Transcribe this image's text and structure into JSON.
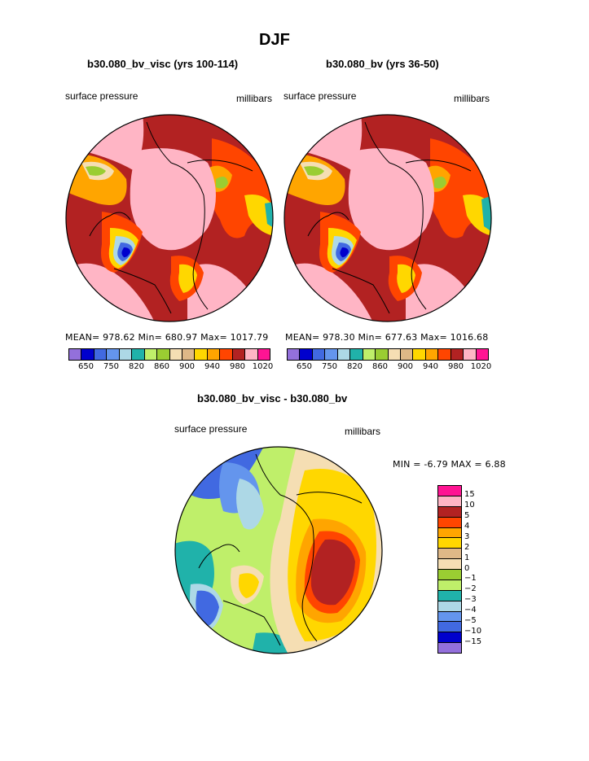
{
  "title": "DJF",
  "colors": {
    "pink_light": "#FFB5C5",
    "brown_red": "#B22222",
    "red": "#EE2C2C",
    "orange_red": "#FF4500",
    "orange": "#FFA500",
    "gold": "#FFD700",
    "tan": "#DEB887",
    "wheat": "#F5DEB3",
    "olive": "#9ACD32",
    "lime": "#BFEF6A",
    "teal": "#20B2AA",
    "light_blue": "#ADD8E6",
    "blue": "#4169E1",
    "dark_blue": "#0000CD",
    "purple": "#9370DB",
    "magenta": "#FF1493",
    "land_outline": "#000000"
  },
  "chart_data": [
    {
      "type": "heatmap",
      "projection": "north-polar-stereographic",
      "title": "b30.080_bv_visc (yrs 100-114)",
      "left_label": "surface pressure",
      "right_label": "millibars",
      "stats": "MEAN= 978.62   Min= 680.97   Max= 1017.79",
      "mean": 978.62,
      "min": 680.97,
      "max": 1017.79,
      "colorbar": {
        "colors": [
          "#9370DB",
          "#0000CD",
          "#4169E1",
          "#6495ED",
          "#ADD8E6",
          "#20B2AA",
          "#BFEF6A",
          "#9ACD32",
          "#F5DEB3",
          "#DEB887",
          "#FFD700",
          "#FFA500",
          "#FF4500",
          "#B22222",
          "#FFB5C5",
          "#FF1493"
        ],
        "tick_labels": [
          "650",
          "750",
          "820",
          "860",
          "900",
          "940",
          "980",
          "1020"
        ]
      }
    },
    {
      "type": "heatmap",
      "projection": "north-polar-stereographic",
      "title": "b30.080_bv (yrs 36-50)",
      "left_label": "surface pressure",
      "right_label": "millibars",
      "stats": "MEAN= 978.30   Min= 677.63   Max= 1016.68",
      "mean": 978.3,
      "min": 677.63,
      "max": 1016.68,
      "colorbar": {
        "colors": [
          "#9370DB",
          "#0000CD",
          "#4169E1",
          "#6495ED",
          "#ADD8E6",
          "#20B2AA",
          "#BFEF6A",
          "#9ACD32",
          "#F5DEB3",
          "#DEB887",
          "#FFD700",
          "#FFA500",
          "#FF4500",
          "#B22222",
          "#FFB5C5",
          "#FF1493"
        ],
        "tick_labels": [
          "650",
          "750",
          "820",
          "860",
          "900",
          "940",
          "980",
          "1020"
        ]
      }
    },
    {
      "type": "heatmap",
      "projection": "north-polar-stereographic",
      "title": "b30.080_bv_visc - b30.080_bv",
      "left_label": "surface pressure",
      "right_label": "millibars",
      "stats": "MIN =   -6.79  MAX =    6.88",
      "min": -6.79,
      "max": 6.88,
      "colorbar": {
        "colors": [
          "#FF1493",
          "#FFB5C5",
          "#B22222",
          "#FF4500",
          "#FFA500",
          "#FFD700",
          "#DEB887",
          "#F5DEB3",
          "#9ACD32",
          "#BFEF6A",
          "#20B2AA",
          "#ADD8E6",
          "#6495ED",
          "#4169E1",
          "#0000CD",
          "#9370DB"
        ],
        "tick_labels": [
          "15",
          "10",
          "5",
          "4",
          "3",
          "2",
          "1",
          "0",
          "−1",
          "−2",
          "−3",
          "−4",
          "−5",
          "−10",
          "−15"
        ]
      }
    }
  ]
}
